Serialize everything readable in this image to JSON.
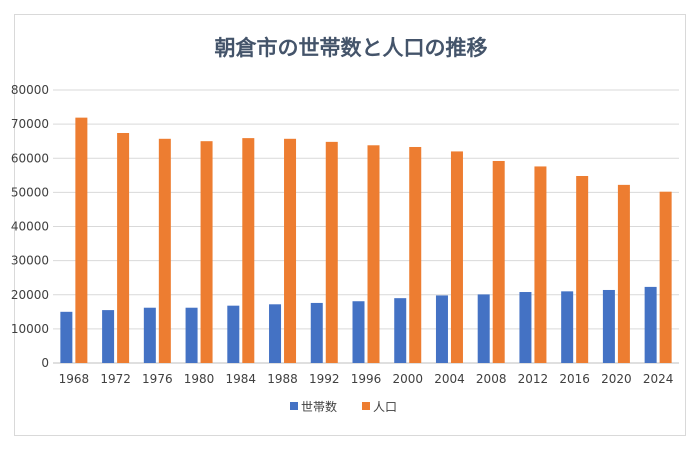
{
  "chart_data": {
    "type": "bar",
    "title": "朝倉市の世帯数と人口の推移",
    "categories": [
      "1968",
      "1972",
      "1976",
      "1980",
      "1984",
      "1988",
      "1992",
      "1996",
      "2000",
      "2004",
      "2008",
      "2012",
      "2016",
      "2020",
      "2024"
    ],
    "series": [
      {
        "name": "世帯数",
        "color": "#4472c4",
        "values": [
          15000,
          15500,
          16200,
          16200,
          16800,
          17200,
          17600,
          18100,
          19000,
          19800,
          20100,
          20800,
          21000,
          21400,
          22300
        ]
      },
      {
        "name": "人口",
        "color": "#ed7d31",
        "values": [
          71900,
          67400,
          65700,
          65000,
          65900,
          65700,
          64800,
          63800,
          63300,
          62000,
          59200,
          57600,
          54800,
          52200,
          50200
        ]
      }
    ],
    "ylim": [
      0,
      80000
    ],
    "yticks": [
      "0",
      "10000",
      "20000",
      "30000",
      "40000",
      "50000",
      "60000",
      "70000",
      "80000"
    ],
    "grid": true,
    "legend_position": "bottom"
  }
}
